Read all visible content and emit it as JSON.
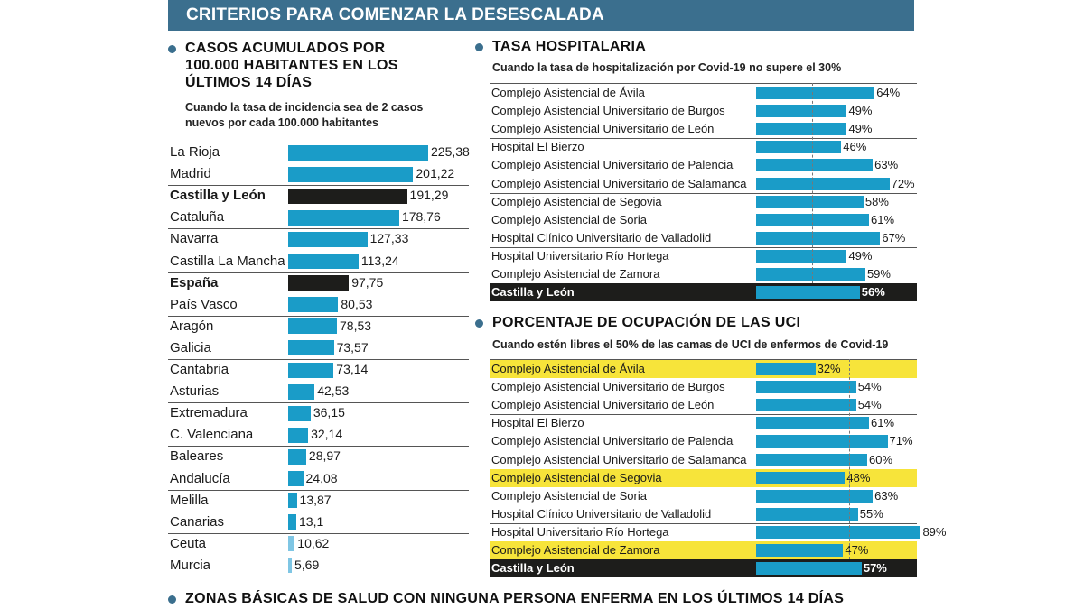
{
  "banner": {
    "title": "CRITERIOS PARA COMENZAR LA DESESCALADA"
  },
  "left": {
    "title_lines": [
      "CASOS ACUMULADOS POR",
      "100.000 HABITANTES EN LOS",
      "ÚLTIMOS 14 DÍAS"
    ],
    "subtitle_lines": [
      "Cuando la tasa de incidencia sea de 2 casos",
      "nuevos por cada 100.000 habitantes"
    ]
  },
  "hosp": {
    "title": "TASA HOSPITALARIA",
    "subtitle": "Cuando la tasa de hospitalización por Covid-19 no supere el 30%"
  },
  "uci": {
    "title": "PORCENTAJE DE OCUPACIÓN DE LAS UCI",
    "subtitle": "Cuando estén libres el 50% de las camas de UCI de enfermos de Covid-19"
  },
  "footer": {
    "title": "ZONAS BÁSICAS DE SALUD CON NINGUNA PERSONA ENFERMA EN LOS ÚLTIMOS 14 DÍAS"
  },
  "colors": {
    "accent": "#3b6f8e",
    "bar": "#1a9cc8",
    "bar_light": "#7fc6e4",
    "dark": "#1d1d1b",
    "highlight": "#f7e43a"
  },
  "chart_data": [
    {
      "type": "bar",
      "title": "CASOS ACUMULADOS POR 100.000 HABITANTES EN LOS ÚLTIMOS 14 DÍAS",
      "categories": [
        "La Rioja",
        "Madrid",
        "Castilla y León",
        "Cataluña",
        "Navarra",
        "Castilla La Mancha",
        "España",
        "País Vasco",
        "Aragón",
        "Galicia",
        "Cantabria",
        "Asturias",
        "Extremadura",
        "C. Valenciana",
        "Baleares",
        "Andalucía",
        "Melilla",
        "Canarias",
        "Ceuta",
        "Murcia"
      ],
      "values": [
        225.38,
        201.22,
        191.29,
        178.76,
        127.33,
        113.24,
        97.75,
        80.53,
        78.53,
        73.57,
        73.14,
        42.53,
        36.15,
        32.14,
        28.97,
        24.08,
        13.87,
        13.1,
        10.62,
        5.69
      ],
      "value_labels": [
        "225,38",
        "201,22",
        "191,29",
        "178,76",
        "127,33",
        "113,24",
        "97,75",
        "80,53",
        "78,53",
        "73,57",
        "73,14",
        "42,53",
        "36,15",
        "32,14",
        "28,97",
        "24,08",
        "13,87",
        "13,1",
        "10,62",
        "5,69"
      ],
      "highlighted": [
        "Castilla y León",
        "España"
      ],
      "light_bars": [
        "Ceuta",
        "Murcia"
      ]
    },
    {
      "type": "bar",
      "title": "TASA HOSPITALARIA",
      "categories": [
        "Complejo Asistencial de Ávila",
        "Complejo Asistencial Universitario de Burgos",
        "Complejo Asistencial Universitario de León",
        "Hospital El Bierzo",
        "Complejo Asistencial Universitario de Palencia",
        "Complejo Asistencial Universitario de Salamanca",
        "Complejo Asistencial de Segovia",
        "Complejo Asistencial de Soria",
        "Hospital Clínico Universitario de Valladolid",
        "Hospital Universitario Río Hortega",
        "Complejo Asistencial de Zamora",
        "Castilla y León"
      ],
      "values": [
        64,
        49,
        49,
        46,
        63,
        72,
        58,
        61,
        67,
        49,
        59,
        56
      ],
      "unit": "%",
      "threshold": 30,
      "total_row": "Castilla y León"
    },
    {
      "type": "bar",
      "title": "PORCENTAJE DE OCUPACIÓN DE LAS UCI",
      "categories": [
        "Complejo Asistencial de Ávila",
        "Complejo Asistencial Universitario de Burgos",
        "Complejo Asistencial Universitario de León",
        "Hospital El Bierzo",
        "Complejo Asistencial Universitario de Palencia",
        "Complejo Asistencial Universitario de Salamanca",
        "Complejo Asistencial de Segovia",
        "Complejo Asistencial de Soria",
        "Hospital Clínico Universitario de Valladolid",
        "Hospital Universitario Río Hortega",
        "Complejo Asistencial de Zamora",
        "Castilla y León"
      ],
      "values": [
        32,
        54,
        54,
        61,
        71,
        60,
        48,
        63,
        55,
        89,
        47,
        57
      ],
      "unit": "%",
      "threshold": 50,
      "highlighted": [
        "Complejo Asistencial de Ávila",
        "Complejo Asistencial de Segovia",
        "Complejo Asistencial de Zamora"
      ],
      "total_row": "Castilla y León"
    }
  ]
}
